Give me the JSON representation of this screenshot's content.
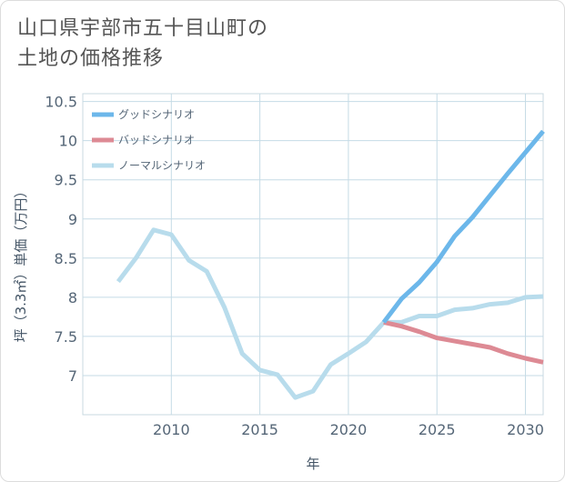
{
  "title": {
    "line1": "山口県宇部市五十目山町の",
    "line2": "土地の価格推移"
  },
  "chart_data": {
    "type": "line",
    "xlabel": "年",
    "ylabel": "坪（3.3㎡）単価（万円）",
    "xlim": [
      2005,
      2031
    ],
    "ylim": [
      6.5,
      10.6
    ],
    "x_ticks": [
      "2010",
      "2015",
      "2020",
      "2025",
      "2030"
    ],
    "y_ticks": [
      "7",
      "7.5",
      "8",
      "8.5",
      "9",
      "9.5",
      "10",
      "10.5"
    ],
    "grid": true,
    "legend_position": "top-left",
    "series": [
      {
        "name": "グッドシナリオ",
        "color": "#6cb7ea",
        "x": [
          2022,
          2023,
          2024,
          2025,
          2026,
          2027,
          2028,
          2029,
          2030,
          2031
        ],
        "y": [
          7.68,
          7.98,
          8.19,
          8.45,
          8.78,
          9.02,
          9.3,
          9.58,
          9.85,
          10.12
        ]
      },
      {
        "name": "バッドシナリオ",
        "color": "#dd8a94",
        "x": [
          2022,
          2023,
          2024,
          2025,
          2026,
          2027,
          2028,
          2029,
          2030,
          2031
        ],
        "y": [
          7.68,
          7.63,
          7.56,
          7.48,
          7.44,
          7.4,
          7.36,
          7.28,
          7.22,
          7.17
        ]
      },
      {
        "name": "ノーマルシナリオ",
        "color": "#b8dcec",
        "x": [
          2007,
          2008,
          2009,
          2010,
          2011,
          2012,
          2013,
          2014,
          2015,
          2016,
          2017,
          2018,
          2019,
          2020,
          2021,
          2022,
          2023,
          2024,
          2025,
          2026,
          2027,
          2028,
          2029,
          2030,
          2031
        ],
        "y": [
          8.2,
          8.5,
          8.86,
          8.8,
          8.47,
          8.33,
          7.87,
          7.28,
          7.07,
          7.01,
          6.72,
          6.8,
          7.14,
          7.28,
          7.43,
          7.68,
          7.68,
          7.76,
          7.76,
          7.84,
          7.86,
          7.91,
          7.93,
          8.0,
          8.01
        ]
      }
    ]
  }
}
